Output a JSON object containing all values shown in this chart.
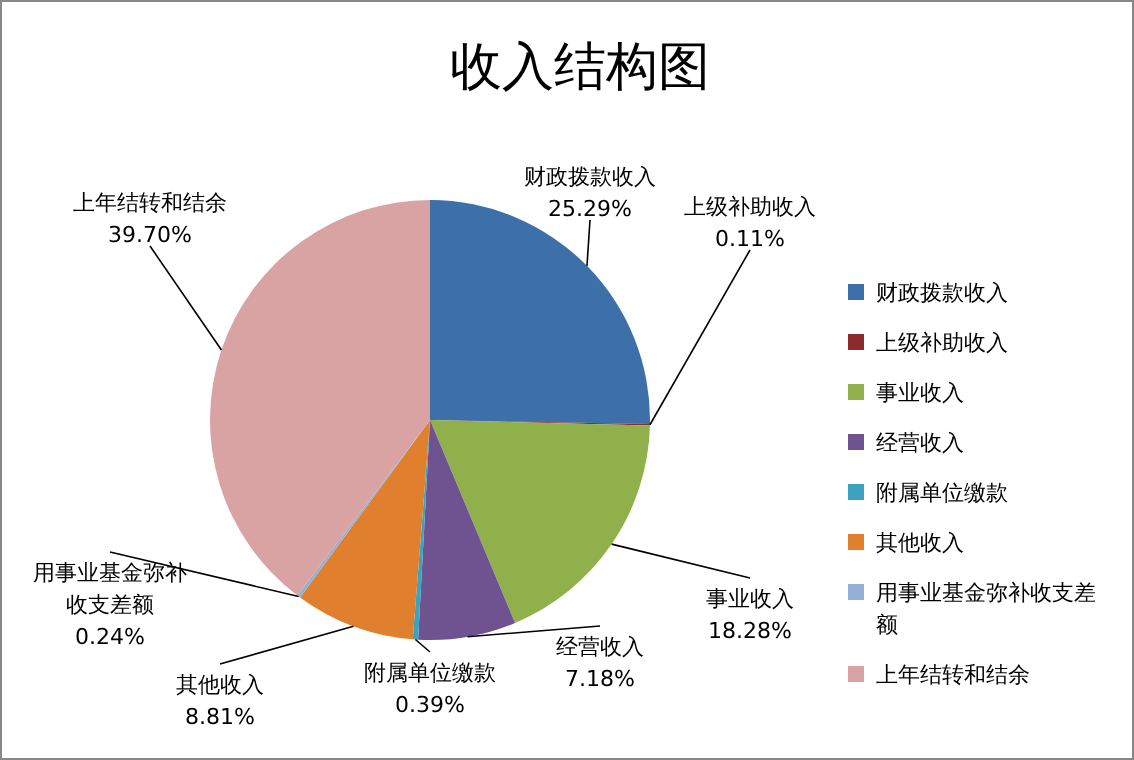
{
  "chart_data": {
    "type": "pie",
    "title": "收入结构图",
    "categories": [
      "财政拨款收入",
      "上级补助收入",
      "事业收入",
      "经营收入",
      "附属单位缴款",
      "其他收入",
      "用事业基金弥补收支差额",
      "上年结转和结余"
    ],
    "values": [
      25.29,
      0.11,
      18.28,
      7.18,
      0.39,
      8.81,
      0.24,
      39.7
    ],
    "value_labels": [
      "25.29%",
      "0.11%",
      "18.28%",
      "7.18%",
      "0.39%",
      "8.81%",
      "0.24%",
      "39.70%"
    ],
    "colors": [
      "#3d6fa8",
      "#8c2b2b",
      "#8fb04a",
      "#6f5391",
      "#3ba3bd",
      "#e0802f",
      "#93b0d6",
      "#d9a3a3"
    ],
    "legend": "right"
  }
}
